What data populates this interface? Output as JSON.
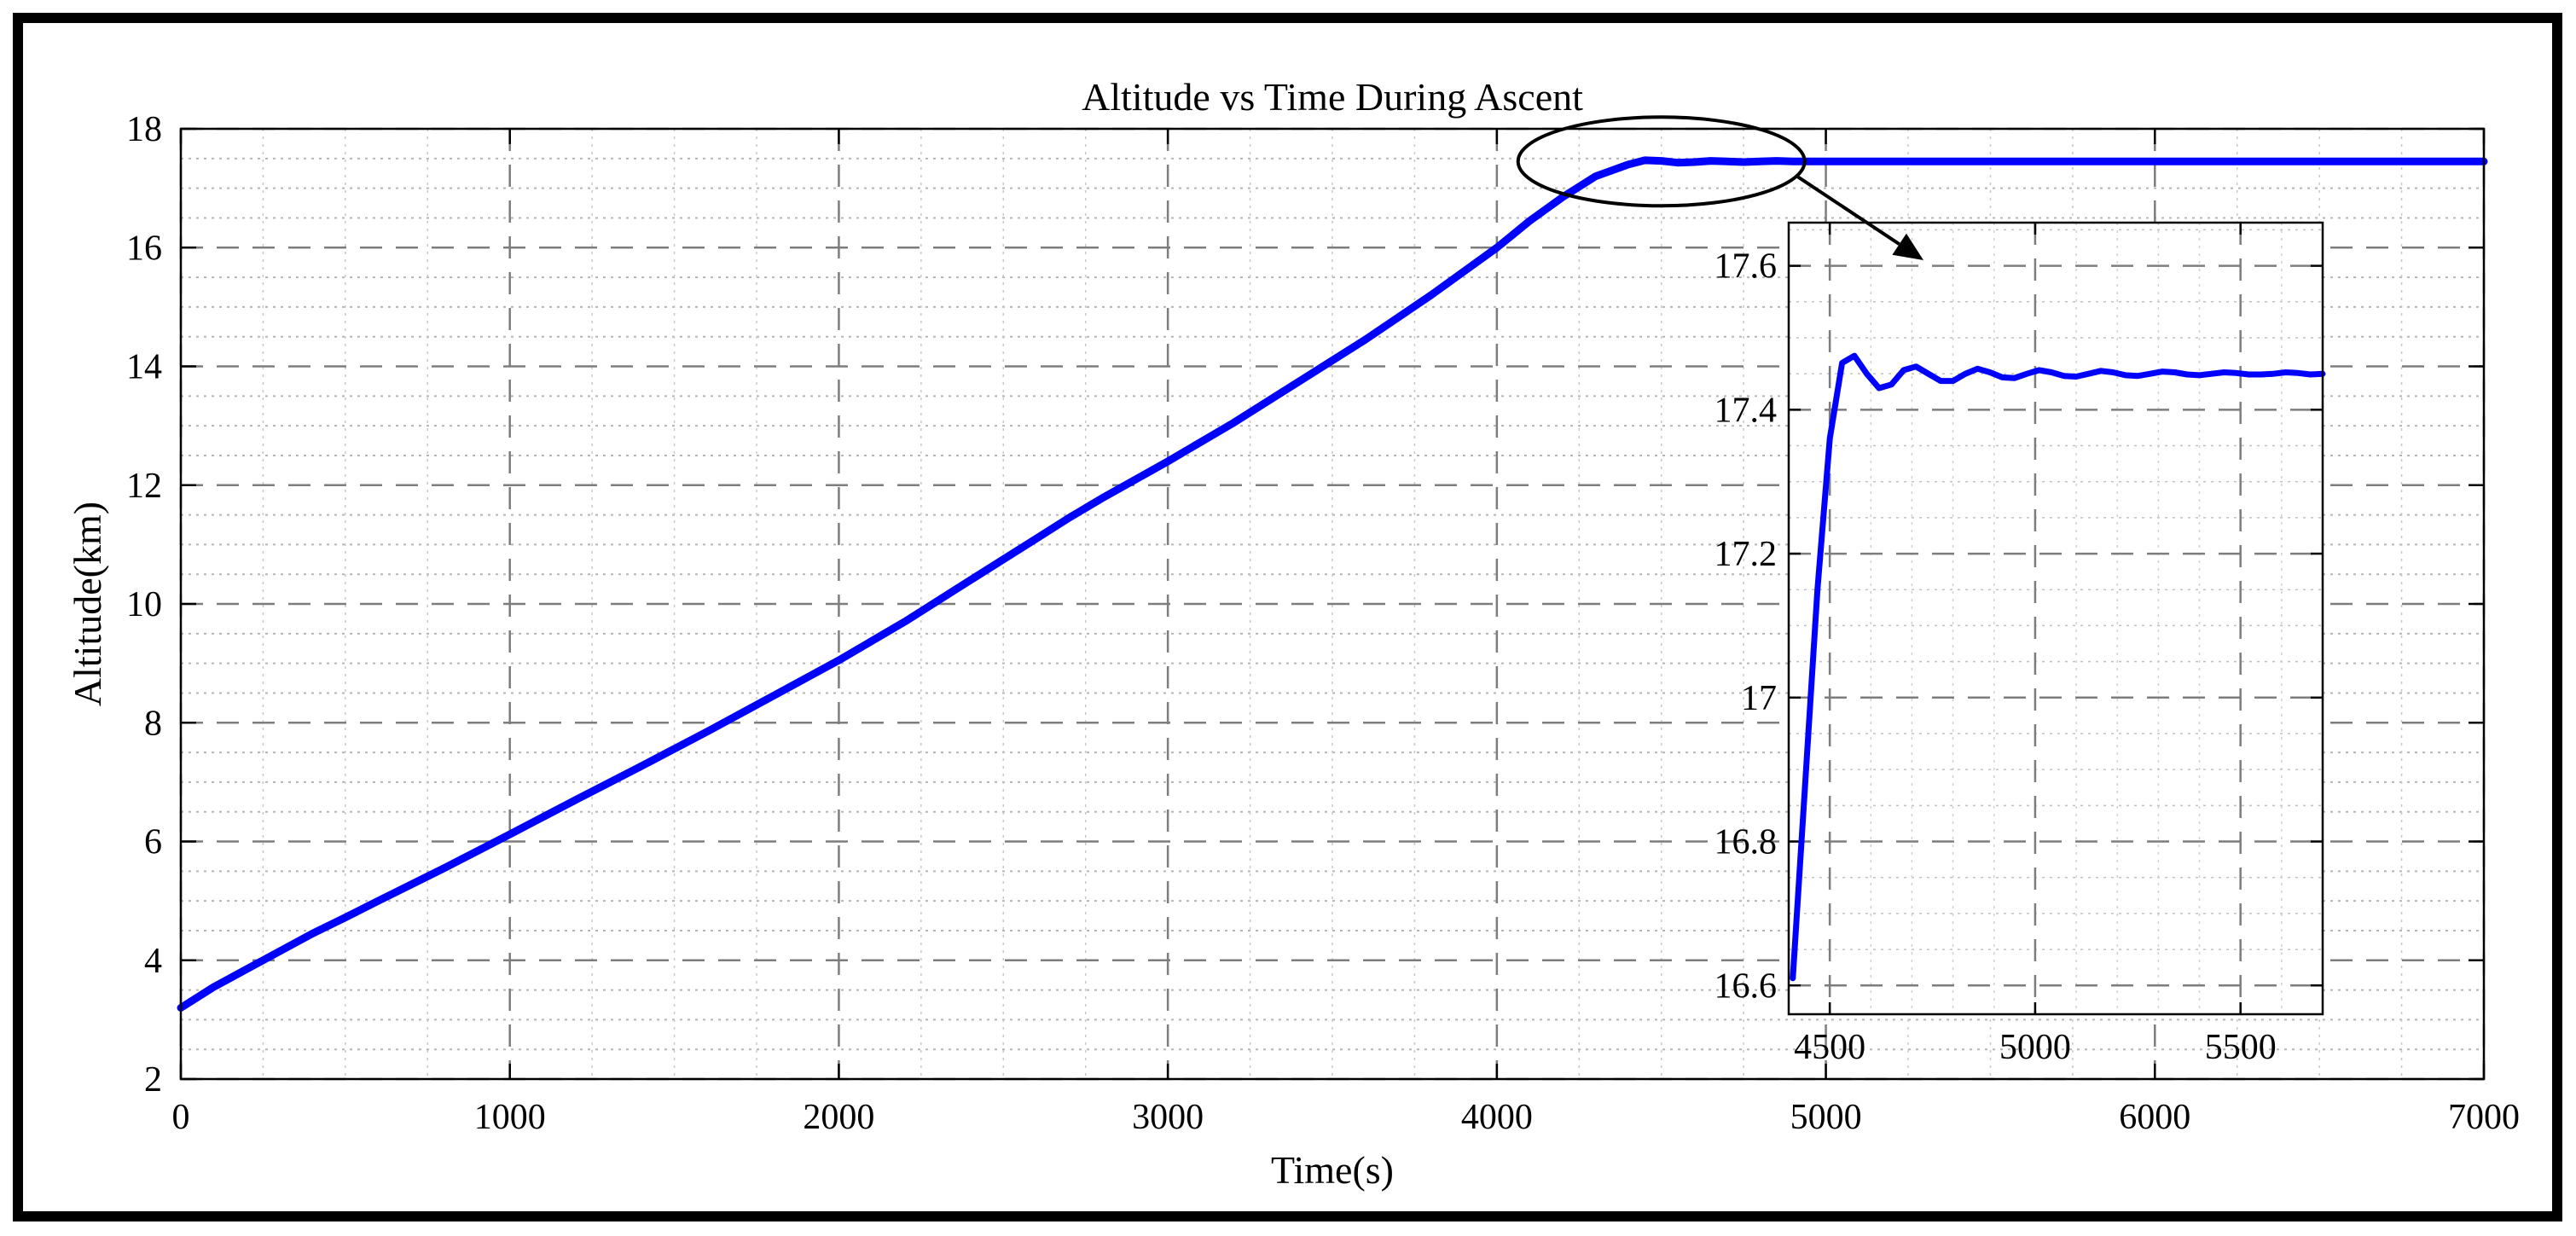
{
  "chart_data": [
    {
      "type": "line",
      "title": "Altitude vs Time During Ascent",
      "xlabel": "Time(s)",
      "ylabel": "Altitude(km)",
      "xlim": [
        0,
        7000
      ],
      "ylim": [
        2,
        18
      ],
      "xticks": [
        0,
        1000,
        2000,
        3000,
        4000,
        5000,
        6000,
        7000
      ],
      "yticks": [
        2,
        4,
        6,
        8,
        10,
        12,
        14,
        16,
        18
      ],
      "xtick_labels": [
        "0",
        "1000",
        "2000",
        "3000",
        "4000",
        "5000",
        "6000",
        "7000"
      ],
      "ytick_labels": [
        "2",
        "4",
        "6",
        "8",
        "10",
        "12",
        "14",
        "16",
        "18"
      ],
      "grid": "major dashed, minor dotted",
      "line_color": "#0000FF",
      "series": [
        {
          "x": [
            0,
            100,
            200,
            300,
            400,
            500,
            600,
            800,
            1000,
            1200,
            1400,
            1600,
            1800,
            2000,
            2200,
            2400,
            2600,
            2700,
            2800,
            3000,
            3200,
            3400,
            3600,
            3800,
            4000,
            4100,
            4200,
            4300,
            4400,
            4450,
            4500,
            4550,
            4600,
            4650,
            4700,
            4750,
            4800,
            4850,
            4900,
            4950,
            5000,
            5500,
            6000,
            6500,
            7000
          ],
          "y": [
            3.2,
            3.55,
            3.85,
            4.15,
            4.45,
            4.72,
            5.0,
            5.55,
            6.12,
            6.7,
            7.27,
            7.85,
            8.45,
            9.05,
            9.7,
            10.4,
            11.1,
            11.45,
            11.78,
            12.4,
            13.05,
            13.75,
            14.45,
            15.2,
            16.0,
            16.45,
            16.85,
            17.2,
            17.4,
            17.47,
            17.46,
            17.43,
            17.44,
            17.46,
            17.45,
            17.44,
            17.45,
            17.46,
            17.45,
            17.45,
            17.45,
            17.45,
            17.45,
            17.45,
            17.45
          ]
        }
      ],
      "annotations": [
        {
          "type": "ellipse-highlight",
          "center": [
            4700,
            17.45
          ],
          "note": ""
        },
        {
          "type": "arrow",
          "from": [
            4950,
            17.3
          ],
          "to": [
            5300,
            16.7
          ]
        }
      ]
    },
    {
      "type": "line",
      "title": "",
      "xlabel": "",
      "ylabel": "",
      "xlim": [
        4400,
        5700
      ],
      "ylim": [
        16.56,
        17.66
      ],
      "xticks": [
        4500,
        5000,
        5500
      ],
      "yticks": [
        16.6,
        16.8,
        17,
        17.2,
        17.4,
        17.6
      ],
      "xtick_labels": [
        "4500",
        "5000",
        "5500"
      ],
      "ytick_labels": [
        "16.6",
        "16.8",
        "17",
        "17.2",
        "17.4",
        "17.6"
      ],
      "grid": "major dashed, minor dotted",
      "line_color": "#0000FF",
      "series": [
        {
          "x": [
            4410,
            4440,
            4470,
            4500,
            4530,
            4560,
            4590,
            4620,
            4650,
            4680,
            4710,
            4740,
            4770,
            4800,
            4830,
            4860,
            4890,
            4920,
            4950,
            4980,
            5010,
            5040,
            5070,
            5100,
            5130,
            5160,
            5190,
            5220,
            5250,
            5280,
            5310,
            5340,
            5370,
            5400,
            5430,
            5460,
            5490,
            5520,
            5550,
            5580,
            5610,
            5640,
            5670,
            5700
          ],
          "y": [
            16.61,
            16.88,
            17.15,
            17.36,
            17.465,
            17.475,
            17.45,
            17.43,
            17.435,
            17.455,
            17.46,
            17.45,
            17.44,
            17.44,
            17.45,
            17.457,
            17.452,
            17.445,
            17.444,
            17.45,
            17.455,
            17.452,
            17.447,
            17.446,
            17.45,
            17.454,
            17.452,
            17.448,
            17.447,
            17.45,
            17.453,
            17.452,
            17.449,
            17.448,
            17.45,
            17.452,
            17.451,
            17.449,
            17.449,
            17.45,
            17.452,
            17.451,
            17.449,
            17.45
          ]
        }
      ]
    }
  ]
}
